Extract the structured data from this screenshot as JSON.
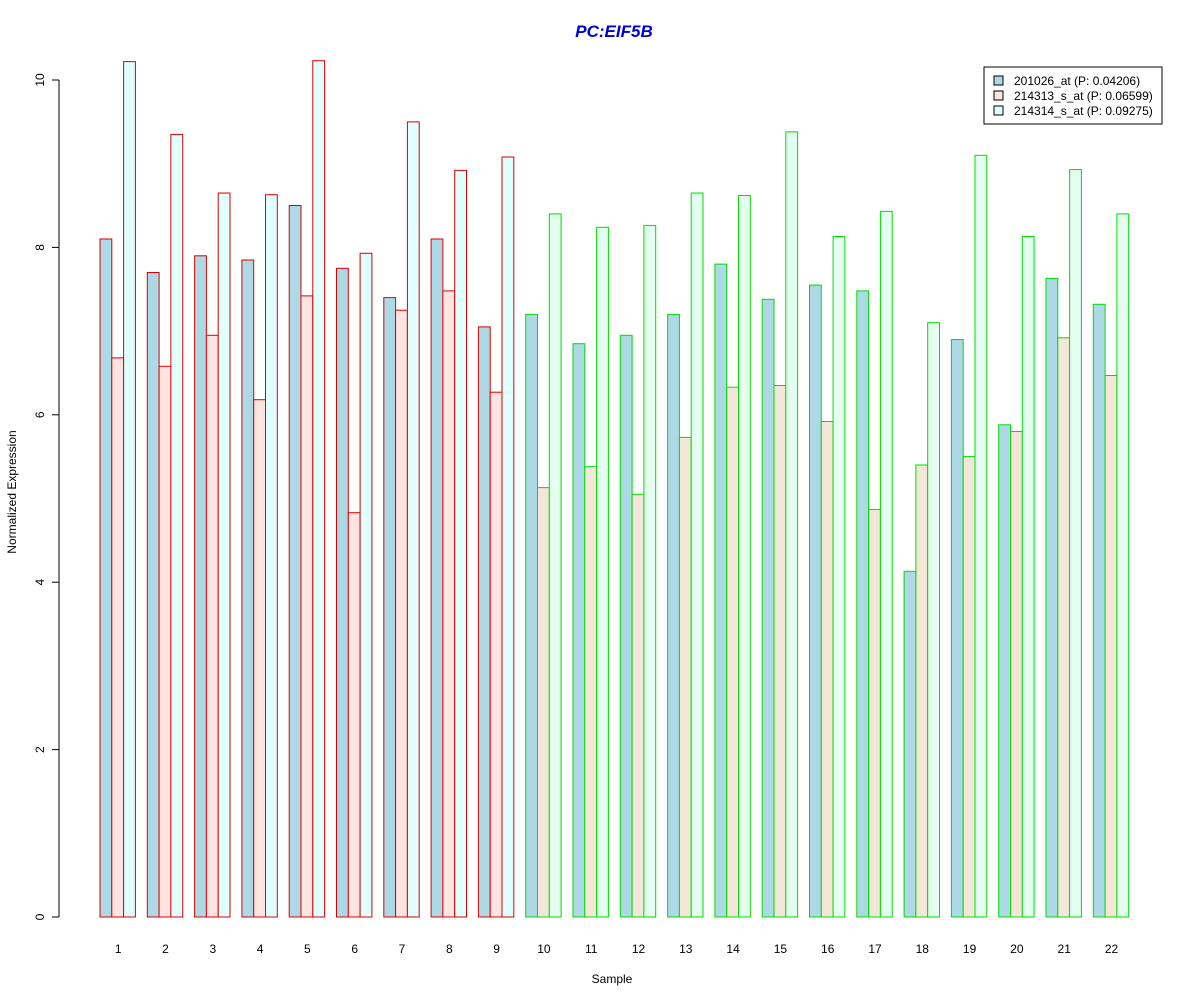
{
  "chart_data": {
    "type": "bar",
    "title": "PC:EIF5B",
    "xlabel": "Sample",
    "ylabel": "Normalized Expression",
    "ylim": [
      0,
      10.3
    ],
    "yticks": [
      0,
      2,
      4,
      6,
      8,
      10
    ],
    "categories": [
      "1",
      "2",
      "3",
      "4",
      "5",
      "6",
      "7",
      "8",
      "9",
      "10",
      "11",
      "12",
      "13",
      "14",
      "15",
      "16",
      "17",
      "18",
      "19",
      "20",
      "21",
      "22"
    ],
    "series": [
      {
        "name": "201026_at (P: 0.04206)",
        "fill": "#add8e6",
        "values": [
          8.1,
          7.7,
          7.9,
          7.85,
          8.5,
          7.75,
          7.4,
          8.1,
          7.05,
          7.2,
          6.85,
          6.95,
          7.2,
          7.8,
          7.38,
          7.55,
          7.48,
          4.13,
          6.9,
          5.88,
          7.63,
          7.32
        ]
      },
      {
        "name": "214313_s_at (P: 0.06599)",
        "fill": "#ffe4e1",
        "group2_fill": "#f5e6da",
        "values": [
          6.68,
          6.58,
          6.95,
          6.18,
          7.42,
          4.83,
          7.25,
          7.48,
          6.27,
          5.13,
          5.38,
          5.05,
          5.73,
          6.33,
          6.35,
          5.92,
          4.87,
          5.4,
          5.5,
          5.8,
          6.92,
          6.47
        ]
      },
      {
        "name": "214314_s_at (P: 0.09275)",
        "fill": "#e0ffff",
        "group2_fill": "#e4fff0",
        "values": [
          10.22,
          9.35,
          8.65,
          8.63,
          10.23,
          7.93,
          9.5,
          8.92,
          9.08,
          8.4,
          8.24,
          8.26,
          8.65,
          8.62,
          9.38,
          8.13,
          8.43,
          7.1,
          9.1,
          8.13,
          8.93,
          8.4
        ]
      }
    ],
    "border_colors": {
      "group1": "#dd0000",
      "group2": "#00dd00"
    },
    "group1_count": 9,
    "legend_position": "top-right",
    "grid": false
  }
}
